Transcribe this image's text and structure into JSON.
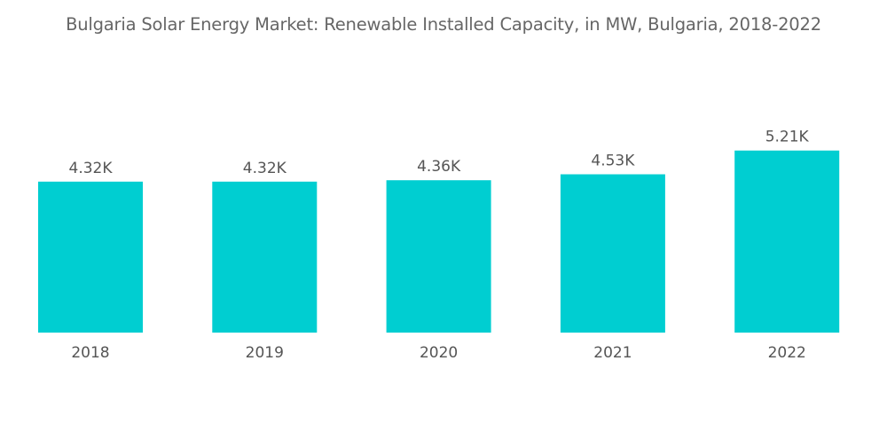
{
  "chart_data": {
    "type": "bar",
    "title": "Bulgaria Solar Energy Market: Renewable Installed Capacity, in MW, Bulgaria, 2018-2022",
    "xlabel": "",
    "ylabel": "",
    "categories": [
      "2018",
      "2019",
      "2020",
      "2021",
      "2022"
    ],
    "values": [
      4.32,
      4.32,
      4.36,
      4.53,
      5.21
    ],
    "value_labels": [
      "4.32K",
      "4.32K",
      "4.36K",
      "4.53K",
      "5.21K"
    ],
    "units": "thousand MW",
    "ylim": [
      0,
      5.21
    ],
    "grid": false,
    "legend": "none",
    "bar_color": "#00CED1"
  }
}
